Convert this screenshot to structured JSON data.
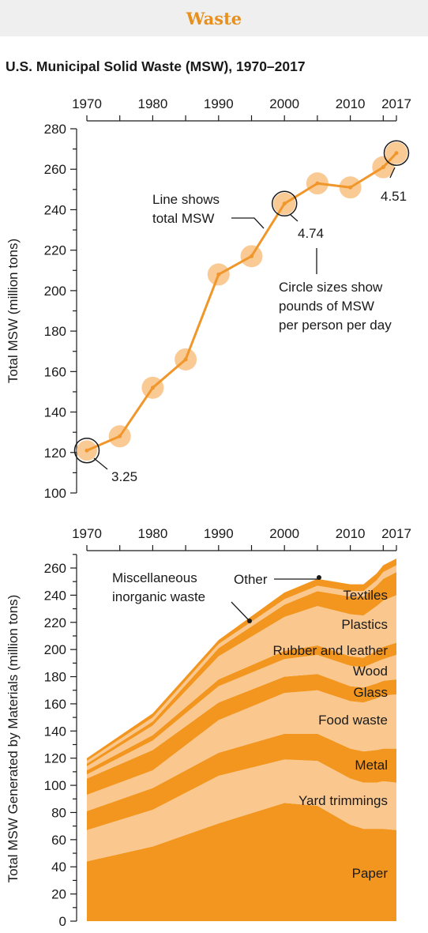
{
  "header": {
    "banner": "Waste"
  },
  "title": "U.S. Municipal Solid Waste (MSW), 1970–2017",
  "colors": {
    "accent": "#e8901e",
    "line": "#f0962a",
    "bubble": "#f9c48a",
    "layer_dark": "#f3961f",
    "layer_light": "#fac88f",
    "banner_bg": "#efefef"
  },
  "chart_data": [
    {
      "type": "line",
      "x": [
        1970,
        1975,
        1980,
        1985,
        1990,
        1995,
        2000,
        2005,
        2010,
        2015,
        2017
      ],
      "series": [
        {
          "values": [
            121,
            128,
            152,
            166,
            208,
            217,
            243,
            253,
            251,
            261,
            268
          ]
        }
      ],
      "bubble_size_measure": "pounds of MSW per person per day",
      "circle_labels": [
        {
          "x": 1970,
          "label": "3.25"
        },
        {
          "x": 2000,
          "label": "4.74"
        },
        {
          "x": 2017,
          "label": "4.51"
        }
      ],
      "annotations": {
        "line": "Line shows total MSW",
        "circles": "Circle sizes show pounds of MSW per person per day"
      },
      "xticks": [
        1970,
        1980,
        1990,
        2000,
        2010,
        2017
      ],
      "xlim": [
        1970,
        2017
      ],
      "ylabel": "Total MSW (million tons)",
      "ylim": [
        100,
        280
      ],
      "yticks": [
        100,
        120,
        140,
        160,
        180,
        200,
        220,
        240,
        260,
        280
      ]
    },
    {
      "type": "area",
      "stacked": true,
      "x": [
        1970,
        1980,
        1990,
        2000,
        2005,
        2010,
        2012,
        2014,
        2015,
        2017
      ],
      "series": [
        {
          "name": "Paper",
          "values": [
            44,
            55,
            72,
            87,
            85,
            71,
            68,
            68,
            68,
            67
          ]
        },
        {
          "name": "Yard trimmings",
          "values": [
            23,
            27,
            35,
            32,
            33,
            34,
            34,
            34,
            35,
            35
          ]
        },
        {
          "name": "Metal",
          "values": [
            14,
            16,
            17,
            19,
            20,
            22,
            23,
            24,
            24,
            25
          ]
        },
        {
          "name": "Food waste",
          "values": [
            12,
            13,
            24,
            30,
            32,
            35,
            36,
            38,
            39,
            40
          ]
        },
        {
          "name": "Glass",
          "values": [
            12,
            15,
            13,
            12,
            12,
            11,
            11,
            11,
            11,
            11
          ]
        },
        {
          "name": "Wood",
          "values": [
            3,
            7,
            12,
            13,
            14,
            15,
            15,
            16,
            16,
            18
          ]
        },
        {
          "name": "Rubber and leather",
          "values": [
            3,
            4,
            5,
            6,
            7,
            7,
            7,
            8,
            9,
            9
          ]
        },
        {
          "name": "Plastics",
          "values": [
            3,
            7,
            17,
            25,
            29,
            31,
            31,
            33,
            34,
            35
          ]
        },
        {
          "name": "Textiles",
          "values": [
            2,
            3,
            6,
            9,
            11,
            13,
            14,
            15,
            16,
            17
          ]
        },
        {
          "name": "Miscellaneous inorganic waste",
          "values": [
            2,
            3,
            3,
            4,
            4,
            4,
            4,
            4,
            5,
            5
          ]
        },
        {
          "name": "Other",
          "values": [
            2,
            3,
            3,
            5,
            5,
            5,
            5,
            5,
            5,
            5
          ]
        }
      ],
      "xticks": [
        1970,
        1980,
        1990,
        2000,
        2010,
        2017
      ],
      "xlim": [
        1970,
        2017
      ],
      "ylabel": "Total MSW Generated by Materials (million tons)",
      "ylim": [
        0,
        270
      ],
      "yticks": [
        0,
        20,
        40,
        60,
        80,
        100,
        120,
        140,
        160,
        180,
        200,
        220,
        240,
        260
      ],
      "layer_labels": {
        "misc": "Miscellaneous inorganic waste",
        "other": "Other"
      }
    }
  ]
}
